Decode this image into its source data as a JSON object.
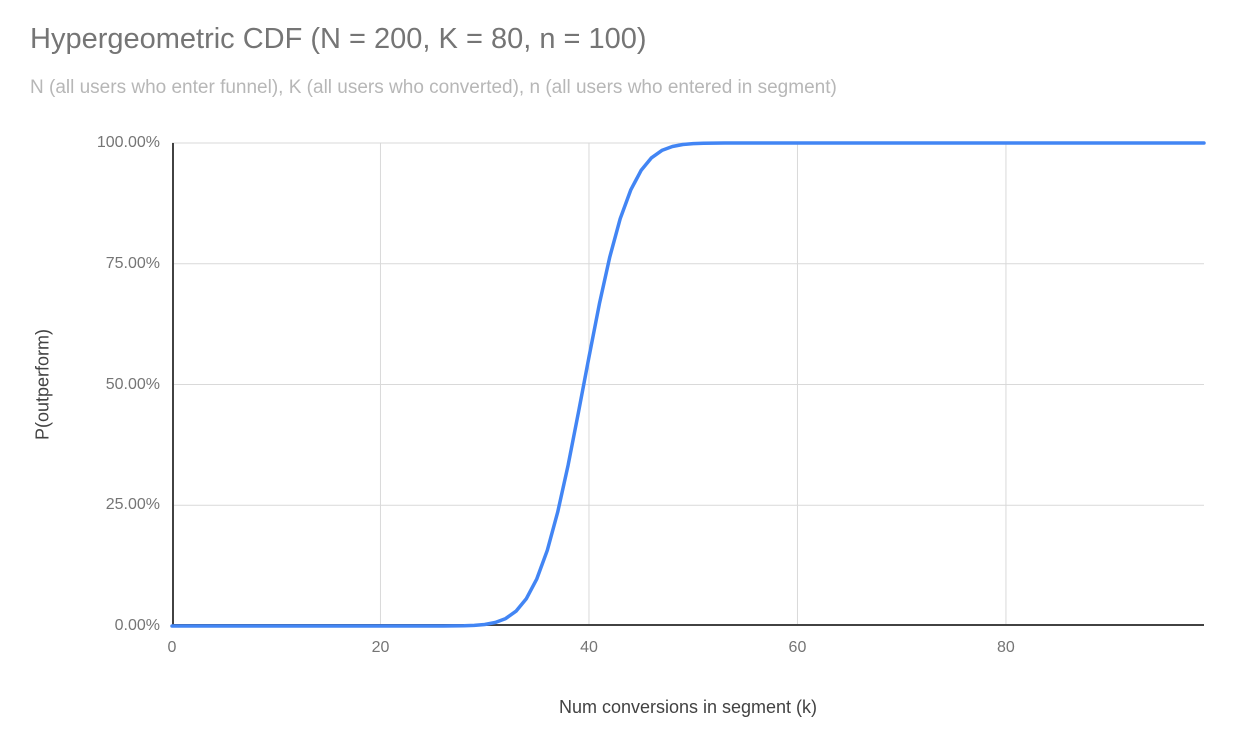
{
  "chart_data": {
    "type": "line",
    "title": "Hypergeometric CDF (N = 200, K = 80, n = 100)",
    "subtitle": "N (all users who enter funnel), K (all users who converted), n (all users who entered in segment)",
    "xlabel": "Num conversions in segment (k)",
    "ylabel": "P(outperform)",
    "xlim": [
      0,
      99
    ],
    "ylim": [
      0,
      1
    ],
    "grid": true,
    "legend_position": "none",
    "x_ticks": [
      {
        "value": 0,
        "label": "0"
      },
      {
        "value": 20,
        "label": "20"
      },
      {
        "value": 40,
        "label": "40"
      },
      {
        "value": 60,
        "label": "60"
      },
      {
        "value": 80,
        "label": "80"
      }
    ],
    "y_ticks": [
      {
        "value": 0,
        "label": "0.00%"
      },
      {
        "value": 0.25,
        "label": "25.00%"
      },
      {
        "value": 0.5,
        "label": "50.00%"
      },
      {
        "value": 0.75,
        "label": "75.00%"
      },
      {
        "value": 1,
        "label": "100.00%"
      }
    ],
    "colors": {
      "line": "#4285f4",
      "grid": "#d9d9d9",
      "axis": "#424242",
      "tick_text": "#757575",
      "title_text": "#757575",
      "subtitle_text": "#b7b7b7",
      "axis_title_text": "#424242",
      "background": "#ffffff"
    },
    "series": [
      {
        "name": "P(outperform)",
        "color": "#4285f4",
        "points": [
          [
            0,
            0
          ],
          [
            5,
            0
          ],
          [
            10,
            0
          ],
          [
            15,
            0
          ],
          [
            20,
            0
          ],
          [
            22,
            0
          ],
          [
            24,
            0
          ],
          [
            25,
            0
          ],
          [
            26,
            0.0001
          ],
          [
            27,
            0.0002
          ],
          [
            28,
            0.0005
          ],
          [
            29,
            0.0013
          ],
          [
            30,
            0.0031
          ],
          [
            31,
            0.0072
          ],
          [
            32,
            0.0154
          ],
          [
            33,
            0.0307
          ],
          [
            34,
            0.0567
          ],
          [
            35,
            0.0975
          ],
          [
            36,
            0.1567
          ],
          [
            37,
            0.2358
          ],
          [
            38,
            0.3329
          ],
          [
            39,
            0.4428
          ],
          [
            40,
            0.5572
          ],
          [
            41,
            0.6671
          ],
          [
            42,
            0.7642
          ],
          [
            43,
            0.8433
          ],
          [
            44,
            0.9025
          ],
          [
            45,
            0.9433
          ],
          [
            46,
            0.9693
          ],
          [
            47,
            0.9846
          ],
          [
            48,
            0.9928
          ],
          [
            49,
            0.9969
          ],
          [
            50,
            0.9987
          ],
          [
            51,
            0.9995
          ],
          [
            52,
            0.9998
          ],
          [
            53,
            0.9999
          ],
          [
            54,
            1
          ],
          [
            55,
            1
          ],
          [
            60,
            1
          ],
          [
            65,
            1
          ],
          [
            70,
            1
          ],
          [
            75,
            1
          ],
          [
            80,
            1
          ],
          [
            85,
            1
          ],
          [
            90,
            1
          ],
          [
            95,
            1
          ],
          [
            99,
            1
          ]
        ]
      }
    ]
  }
}
